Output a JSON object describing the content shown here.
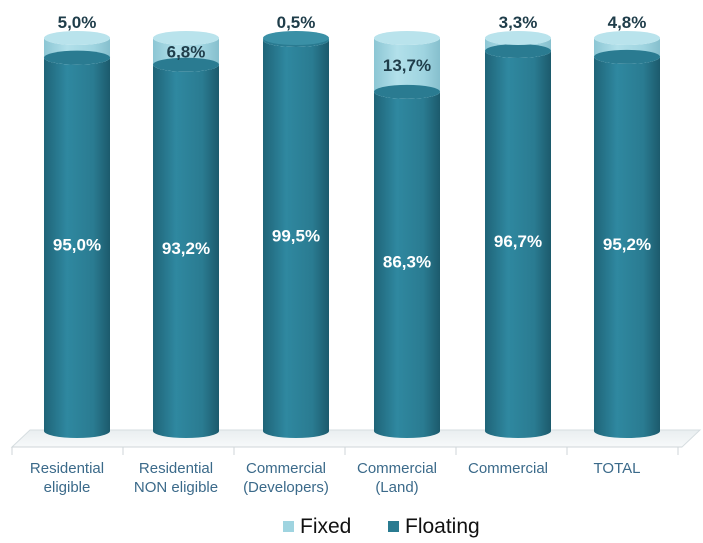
{
  "chart_data": {
    "type": "bar",
    "stacked": true,
    "categories": [
      [
        "Residential",
        "eligible"
      ],
      [
        "Residential",
        "NON eligible"
      ],
      [
        "Commercial",
        "(Developers)"
      ],
      [
        "Commercial",
        "(Land)"
      ],
      [
        "Commercial"
      ],
      [
        "TOTAL"
      ]
    ],
    "series": [
      {
        "name": "Floating",
        "color": "#2a7b91",
        "values": [
          95.0,
          93.2,
          99.5,
          86.3,
          96.7,
          95.2
        ],
        "labels": [
          "95,0%",
          "93,2%",
          "99,5%",
          "86,3%",
          "96,7%",
          "95,2%"
        ]
      },
      {
        "name": "Fixed",
        "color": "#9fd4e0",
        "values": [
          5.0,
          6.8,
          0.5,
          13.7,
          3.3,
          4.8
        ],
        "labels": [
          "5,0%",
          "6,8%",
          "0,5%",
          "13,7%",
          "3,3%",
          "4,8%"
        ]
      }
    ],
    "ylim": [
      0,
      100
    ],
    "legend": {
      "position": "bottom",
      "entries": [
        {
          "name": "Fixed",
          "color": "#9fd4e0"
        },
        {
          "name": "Floating",
          "color": "#2a7b91"
        }
      ]
    },
    "grid": false,
    "title": "",
    "xlabel": "",
    "ylabel": ""
  }
}
